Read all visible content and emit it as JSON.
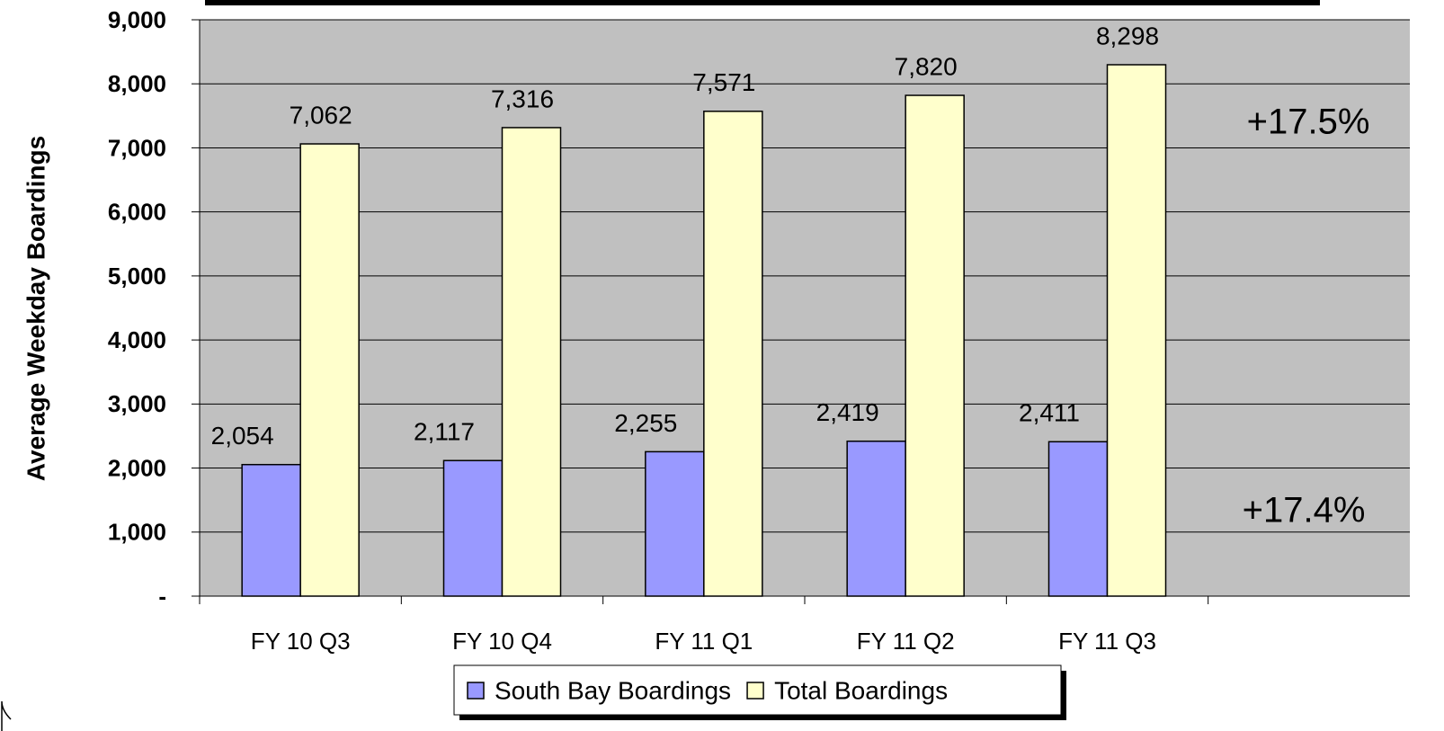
{
  "chart_data": {
    "type": "bar",
    "y_label": "Average Weekday Boardings",
    "categories": [
      "FY 10 Q3",
      "FY 10 Q4",
      "FY 11 Q1",
      "FY 11 Q2",
      "FY 11 Q3",
      null
    ],
    "series": [
      {
        "name": "South Bay Boardings",
        "color": "#9999ff",
        "values": [
          2054,
          2117,
          2255,
          2419,
          2411,
          null
        ],
        "value_labels": [
          "2,054",
          "2,117",
          "2,255",
          "2,419",
          "2,411",
          null
        ]
      },
      {
        "name": "Total Boardings",
        "color": "#ffffcc",
        "values": [
          7062,
          7316,
          7571,
          7820,
          8298,
          null
        ],
        "value_labels": [
          "7,062",
          "7,316",
          "7,571",
          "7,820",
          "8,298",
          null
        ]
      }
    ],
    "ylim": [
      0,
      9000
    ],
    "yticks": [
      {
        "value": 0,
        "label": "-"
      },
      {
        "value": 1000,
        "label": "1,000"
      },
      {
        "value": 2000,
        "label": "2,000"
      },
      {
        "value": 3000,
        "label": "3,000"
      },
      {
        "value": 4000,
        "label": "4,000"
      },
      {
        "value": 5000,
        "label": "5,000"
      },
      {
        "value": 6000,
        "label": "6,000"
      },
      {
        "value": 7000,
        "label": "7,000"
      },
      {
        "value": 8000,
        "label": "8,000"
      },
      {
        "value": 9000,
        "label": "9,000"
      }
    ],
    "grid": true,
    "plot_background": "#c0c0c0",
    "legend": "bottom",
    "annotations": [
      {
        "text": "+17.5%",
        "color": "#ffffff"
      },
      {
        "text": "+17.4%",
        "color": "#0000cc"
      }
    ]
  }
}
